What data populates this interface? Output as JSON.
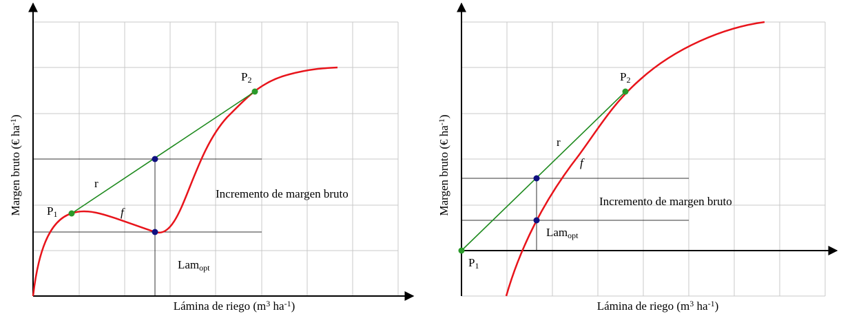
{
  "panels": [
    {
      "y_label": {
        "main": "Margen bruto (€ ha",
        "sup": "-1",
        "end": ")"
      },
      "x_label": {
        "main": "Lámina de riego (m",
        "sup1": "3",
        "mid": " ha",
        "sup2": "-1",
        "end": ")"
      },
      "p1": {
        "main": "P",
        "sub": "1"
      },
      "p2": {
        "main": "P",
        "sub": "2"
      },
      "r": "r",
      "f": "f",
      "increment": "Incremento de margen bruto",
      "lam": {
        "main": "Lam",
        "sub": "opt"
      }
    },
    {
      "y_label": {
        "main": "Margen bruto (€ ha",
        "sup": "-1",
        "end": ")"
      },
      "x_label": {
        "main": "Lámina de riego (m",
        "sup1": "3",
        "mid": " ha",
        "sup2": "-1",
        "end": ")"
      },
      "p1": {
        "main": "P",
        "sub": "1"
      },
      "p2": {
        "main": "P",
        "sub": "2"
      },
      "r": "r",
      "f": "f",
      "increment": "Incremento de margen bruto",
      "lam": {
        "main": "Lam",
        "sub": "opt"
      }
    }
  ]
}
